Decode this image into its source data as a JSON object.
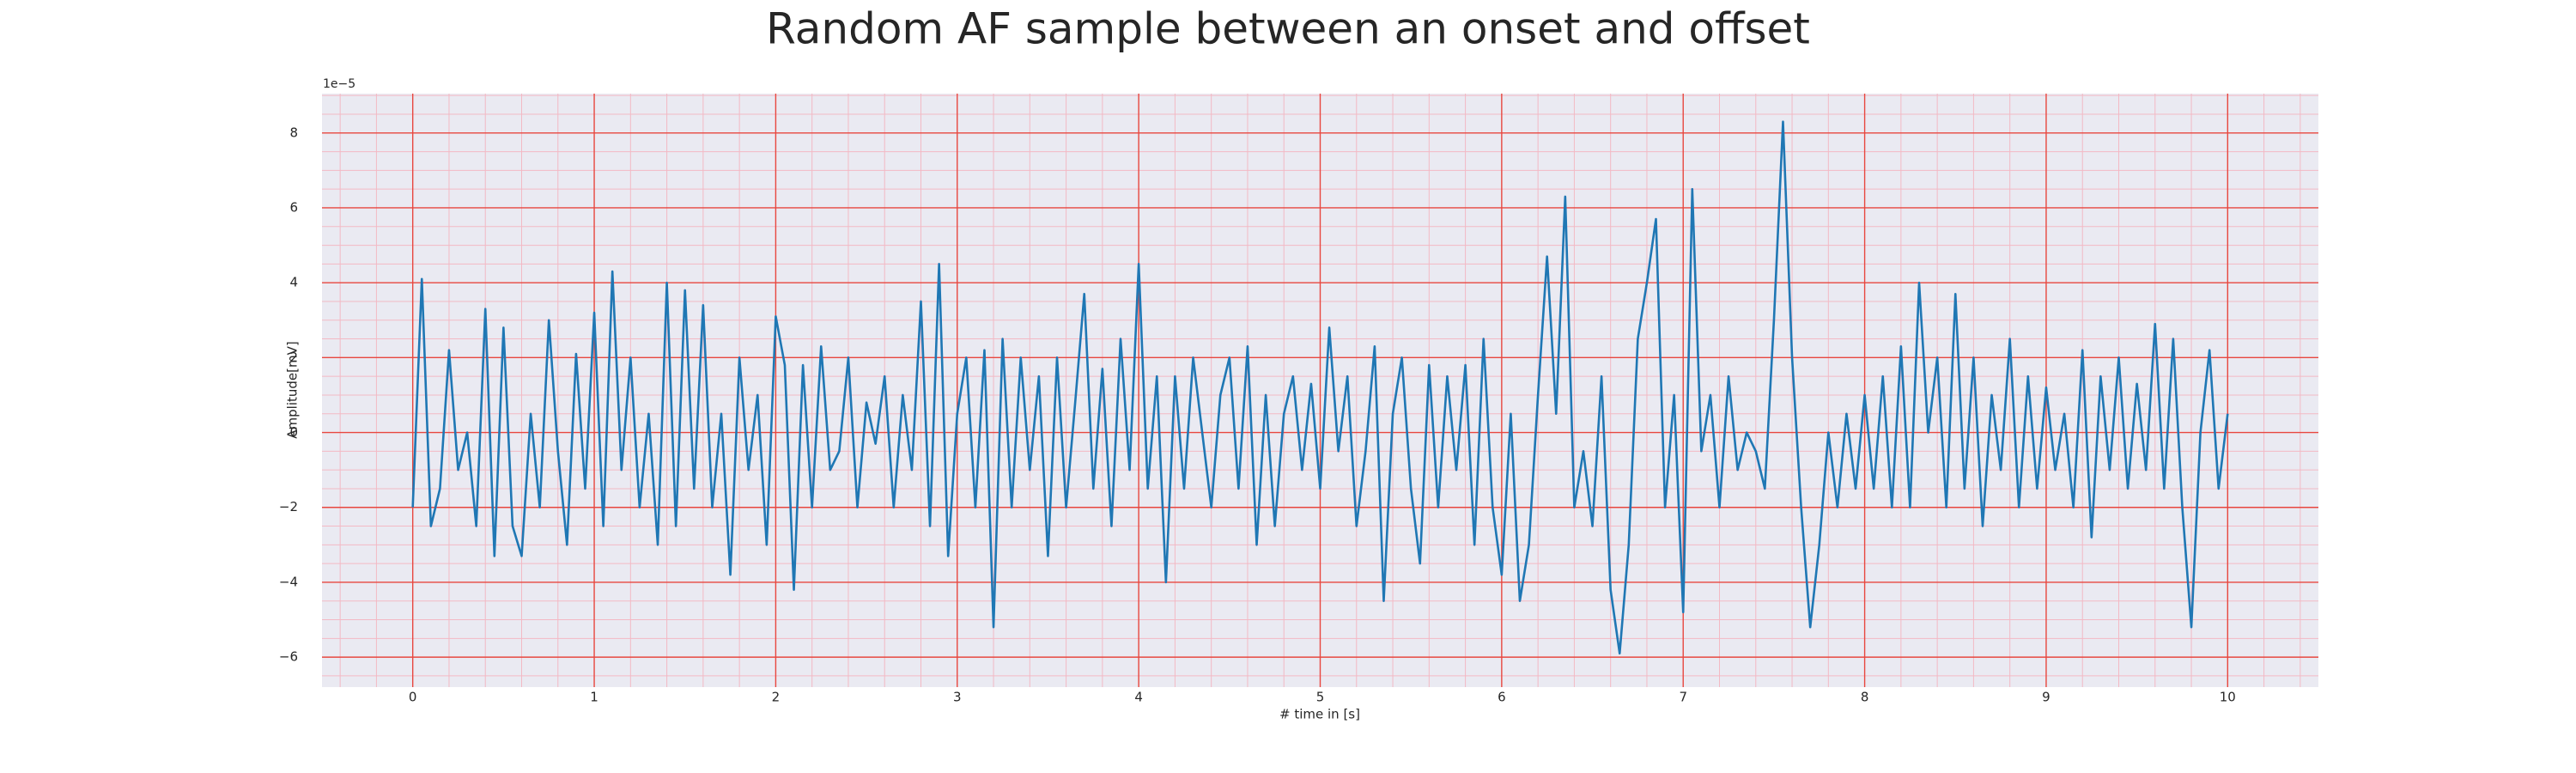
{
  "chart_data": {
    "type": "line",
    "title": "Random AF sample between an onset and offset",
    "xlabel": "# time in [s]",
    "ylabel": "Amplitude[mV]",
    "y_offset_label": "1e−5",
    "xlim": [
      -0.5,
      10.5
    ],
    "ylim": [
      -6.8,
      9.05
    ],
    "xticks": [
      0,
      1,
      2,
      3,
      4,
      5,
      6,
      7,
      8,
      9,
      10
    ],
    "yticks": [
      {
        "value": -6,
        "label": "−6"
      },
      {
        "value": -4,
        "label": "−4"
      },
      {
        "value": -2,
        "label": "−2"
      },
      0,
      2,
      4,
      6,
      8
    ],
    "xminorticks": [
      -0.4,
      -0.2,
      0.2,
      0.4,
      0.6,
      0.8,
      1.2,
      1.4,
      1.6,
      1.8,
      2.2,
      2.4,
      2.6,
      2.8,
      3.2,
      3.4,
      3.6,
      3.8,
      4.2,
      4.4,
      4.6,
      4.8,
      5.2,
      5.4,
      5.6,
      5.8,
      6.2,
      6.4,
      6.6,
      6.8,
      7.2,
      7.4,
      7.6,
      7.8,
      8.2,
      8.4,
      8.6,
      8.8,
      9.2,
      9.4,
      9.6,
      9.8,
      10.2,
      10.4
    ],
    "yminorticks": [
      -6.5,
      -5.5,
      -5,
      -4.5,
      -3.5,
      -3,
      -2.5,
      -1.5,
      -1,
      -0.5,
      0.5,
      1,
      1.5,
      2.5,
      3,
      3.5,
      4.5,
      5,
      5.5,
      6.5,
      7,
      7.5,
      8.5,
      9
    ],
    "grid": true,
    "minor_grid": true,
    "background": "#eaeaf2",
    "grid_color": "#e8473f",
    "minor_grid_color": "#f3b9c4",
    "series": [
      {
        "color": "#1f77b4",
        "x": [
          0,
          0.05,
          0.1,
          0.15,
          0.2,
          0.25,
          0.3,
          0.35,
          0.4,
          0.45,
          0.5,
          0.55,
          0.6,
          0.65,
          0.7,
          0.75,
          0.8,
          0.85,
          0.9,
          0.95,
          1,
          1.05,
          1.1,
          1.15,
          1.2,
          1.25,
          1.3,
          1.35,
          1.4,
          1.45,
          1.5,
          1.55,
          1.6,
          1.65,
          1.7,
          1.75,
          1.8,
          1.85,
          1.9,
          1.95,
          2,
          2.05,
          2.1,
          2.15,
          2.2,
          2.25,
          2.3,
          2.35,
          2.4,
          2.45,
          2.5,
          2.55,
          2.6,
          2.65,
          2.7,
          2.75,
          2.8,
          2.85,
          2.9,
          2.95,
          3,
          3.05,
          3.1,
          3.15,
          3.2,
          3.25,
          3.3,
          3.35,
          3.4,
          3.45,
          3.5,
          3.55,
          3.6,
          3.65,
          3.7,
          3.75,
          3.8,
          3.85,
          3.9,
          3.95,
          4,
          4.05,
          4.1,
          4.15,
          4.2,
          4.25,
          4.3,
          4.35,
          4.4,
          4.45,
          4.5,
          4.55,
          4.6,
          4.65,
          4.7,
          4.75,
          4.8,
          4.85,
          4.9,
          4.95,
          5,
          5.05,
          5.1,
          5.15,
          5.2,
          5.25,
          5.3,
          5.35,
          5.4,
          5.45,
          5.5,
          5.55,
          5.6,
          5.65,
          5.7,
          5.75,
          5.8,
          5.85,
          5.9,
          5.95,
          6,
          6.05,
          6.1,
          6.15,
          6.2,
          6.25,
          6.3,
          6.35,
          6.4,
          6.45,
          6.5,
          6.55,
          6.6,
          6.65,
          6.7,
          6.75,
          6.8,
          6.85,
          6.9,
          6.95,
          7,
          7.05,
          7.1,
          7.15,
          7.2,
          7.25,
          7.3,
          7.35,
          7.4,
          7.45,
          7.5,
          7.55,
          7.6,
          7.65,
          7.7,
          7.75,
          7.8,
          7.85,
          7.9,
          7.95,
          8,
          8.05,
          8.1,
          8.15,
          8.2,
          8.25,
          8.3,
          8.35,
          8.4,
          8.45,
          8.5,
          8.55,
          8.6,
          8.65,
          8.7,
          8.75,
          8.8,
          8.85,
          8.9,
          8.95,
          9,
          9.05,
          9.1,
          9.15,
          9.2,
          9.25,
          9.3,
          9.35,
          9.4,
          9.45,
          9.5,
          9.55,
          9.6,
          9.65,
          9.7,
          9.75,
          9.8,
          9.85,
          9.9,
          9.95,
          10
        ],
        "values": [
          -2,
          4.1,
          -2.5,
          -1.5,
          2.2,
          -1,
          0,
          -2.5,
          3.3,
          -3.3,
          2.8,
          -2.5,
          -3.3,
          0.5,
          -2,
          3,
          -0.5,
          -3,
          2.1,
          -1.5,
          3.2,
          -2.5,
          4.3,
          -1,
          2,
          -2,
          0.5,
          -3,
          4,
          -2.5,
          3.8,
          -1.5,
          3.4,
          -2,
          0.5,
          -3.8,
          2,
          -1,
          1,
          -3,
          3.1,
          1.8,
          -4.2,
          1.8,
          -2,
          2.3,
          -1,
          -0.5,
          2,
          -2,
          0.8,
          -0.3,
          1.5,
          -2,
          1,
          -1,
          3.5,
          -2.5,
          4.5,
          -3.3,
          0.5,
          2,
          -2,
          2.2,
          -5.2,
          2.5,
          -2,
          2,
          -1,
          1.5,
          -3.3,
          2,
          -2,
          0.8,
          3.7,
          -1.5,
          1.7,
          -2.5,
          2.5,
          -1,
          4.5,
          -1.5,
          1.5,
          -4,
          1.5,
          -1.5,
          2,
          0,
          -2,
          1,
          2,
          -1.5,
          2.3,
          -3,
          1,
          -2.5,
          0.5,
          1.5,
          -1,
          1.3,
          -1.5,
          2.8,
          -0.5,
          1.5,
          -2.5,
          -0.5,
          2.3,
          -4.5,
          0.5,
          2,
          -1.5,
          -3.5,
          1.8,
          -2,
          1.5,
          -1,
          1.8,
          -3,
          2.5,
          -2,
          -3.8,
          0.5,
          -4.5,
          -3,
          1,
          4.7,
          0.5,
          6.3,
          -2,
          -0.5,
          -2.5,
          1.5,
          -4.2,
          -5.9,
          -3,
          2.5,
          4,
          5.7,
          -2,
          1,
          -4.8,
          6.5,
          -0.5,
          1,
          -2,
          1.5,
          -1,
          0,
          -0.5,
          -1.5,
          3,
          8.3,
          2,
          -2,
          -5.2,
          -3,
          0,
          -2,
          0.5,
          -1.5,
          1,
          -1.5,
          1.5,
          -2,
          2.3,
          -2,
          4,
          0,
          2,
          -2,
          3.7,
          -1.5,
          2,
          -2.5,
          1,
          -1,
          2.5,
          -2,
          1.5,
          -1.5,
          1.2,
          -1,
          0.5,
          -2,
          2.2,
          -2.8,
          1.5,
          -1,
          2,
          -1.5,
          1.3,
          -1,
          2.9,
          -1.5,
          2.5,
          -2,
          -5.2,
          0,
          2.2,
          -1.5,
          0.5
        ]
      }
    ]
  }
}
